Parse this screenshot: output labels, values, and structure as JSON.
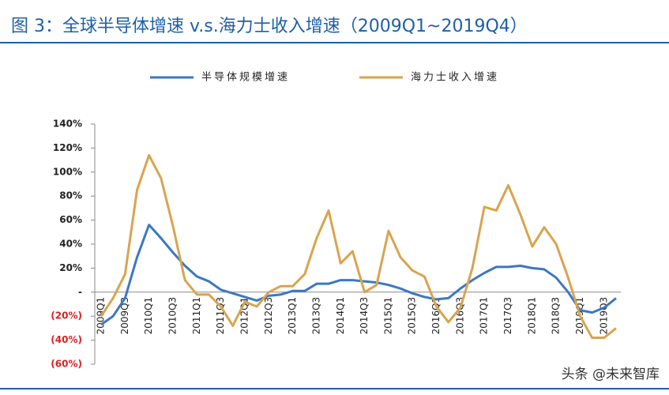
{
  "chart_data": {
    "type": "line",
    "title": "图 3：全球半导体增速 v.s.海力士收入增速（2009Q1~2019Q4）",
    "watermark": "头条 @未来智库",
    "categories": [
      "2009Q1",
      null,
      "2009Q3",
      null,
      "2010Q1",
      null,
      "2010Q3",
      null,
      "2011Q1",
      null,
      "2011Q3",
      null,
      "2012Q1",
      null,
      "2012Q3",
      null,
      "2013Q1",
      null,
      "2013Q3",
      null,
      "2014Q1",
      null,
      "2014Q3",
      null,
      "2015Q1",
      null,
      "2015Q3",
      null,
      "2016Q1",
      null,
      "2016Q3",
      null,
      "2017Q1",
      null,
      "2017Q3",
      null,
      "2018Q1",
      null,
      "2018Q3",
      null,
      "2019Q1",
      null,
      "2019Q3",
      null
    ],
    "series": [
      {
        "name": "半导体规模增速",
        "color": "#3c78c3",
        "values": [
          -27,
          -20,
          -5,
          29,
          56,
          45,
          33,
          22,
          13,
          9,
          2,
          -1,
          -4,
          -7,
          -3,
          -2,
          1,
          1,
          7,
          7,
          10,
          10,
          9,
          8,
          6,
          3,
          -1,
          -4,
          -6,
          -5,
          3,
          10,
          16,
          21,
          21,
          22,
          20,
          19,
          12,
          0,
          -15,
          -17,
          -13,
          -5
        ]
      },
      {
        "name": "海力士收入增速",
        "color": "#d9a44e",
        "values": [
          -20,
          -5,
          15,
          85,
          114,
          95,
          55,
          10,
          -2,
          -2,
          -12,
          -28,
          -8,
          -12,
          0,
          5,
          5,
          15,
          45,
          68,
          24,
          34,
          0,
          6,
          51,
          29,
          18,
          13,
          -12,
          -25,
          -13,
          20,
          71,
          68,
          89,
          65,
          38,
          54,
          40,
          12,
          -20,
          -38,
          -38,
          -30
        ]
      }
    ],
    "ylim": [
      -60,
      140
    ],
    "yticks": [
      {
        "value": -60,
        "label": "(60%)"
      },
      {
        "value": -40,
        "label": "(40%)"
      },
      {
        "value": -20,
        "label": "(20%)"
      },
      {
        "value": 0,
        "label": "-"
      },
      {
        "value": 20,
        "label": "20%"
      },
      {
        "value": 40,
        "label": "40%"
      },
      {
        "value": 60,
        "label": "60%"
      },
      {
        "value": 80,
        "label": "80%"
      },
      {
        "value": 100,
        "label": "100%"
      },
      {
        "value": 120,
        "label": "120%"
      },
      {
        "value": 140,
        "label": "140%"
      }
    ],
    "negative_tick_color": "#e02020",
    "grid": false
  }
}
